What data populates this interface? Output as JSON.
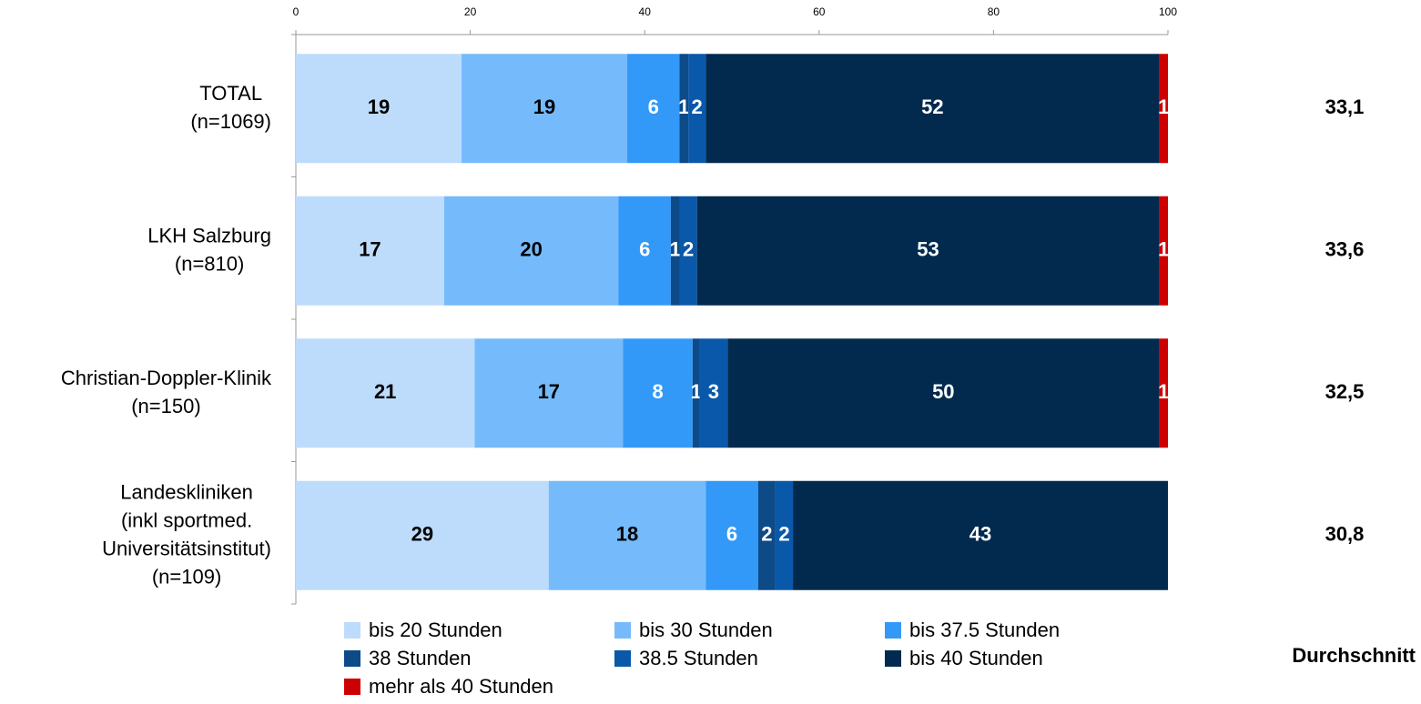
{
  "chart_data": {
    "type": "stacked-barh",
    "categories": [
      "TOTAL\n(n=1069)",
      "LKH Salzburg\n(n=810)",
      "Christian-Doppler-Klinik\n(n=150)",
      "Landeskliniken\n(inkl sportmed.\nUniversitätsinstitut)\n(n=109)"
    ],
    "series": [
      {
        "name": "bis 20 Stunden",
        "color": "#bddcfc",
        "label_color": "#000000",
        "values": [
          19,
          17,
          20.5,
          29
        ],
        "value_labels": [
          "19",
          "17",
          "21",
          "29"
        ]
      },
      {
        "name": "bis 30 Stunden",
        "color": "#75bafb",
        "label_color": "#000000",
        "values": [
          19,
          20,
          17,
          18
        ],
        "value_labels": [
          "19",
          "20",
          "17",
          "18"
        ]
      },
      {
        "name": "bis 37.5 Stunden",
        "color": "#3399f8",
        "label_color": "#ffffff",
        "values": [
          6,
          6,
          8,
          6
        ],
        "value_labels": [
          "6",
          "6",
          "8",
          "6"
        ]
      },
      {
        "name": "38 Stunden",
        "color": "#0c4a88",
        "label_color": "#ffffff",
        "values": [
          1,
          1,
          0.8,
          2
        ],
        "value_labels": [
          "1",
          "1",
          "1",
          "2"
        ]
      },
      {
        "name": "38.5 Stunden",
        "color": "#0a58a9",
        "label_color": "#ffffff",
        "values": [
          2,
          2,
          3.2,
          2
        ],
        "value_labels": [
          "2",
          "2",
          "3",
          "2"
        ]
      },
      {
        "name": "bis 40 Stunden",
        "color": "#022a4f",
        "label_color": "#ffffff",
        "values": [
          52,
          53,
          49.5,
          43
        ],
        "value_labels": [
          "52",
          "53",
          "50",
          "43"
        ]
      },
      {
        "name": "mehr als 40 Stunden",
        "color": "#cc0000",
        "label_color": "#ffffff",
        "values": [
          1,
          1,
          1,
          0
        ],
        "value_labels": [
          "1",
          "1",
          "1",
          null
        ]
      }
    ],
    "xlim": [
      0,
      100
    ],
    "xticks": [
      0,
      20,
      40,
      60,
      80,
      100
    ],
    "averages": {
      "title": "Durchschnitt",
      "values": [
        33.1,
        33.6,
        32.5,
        30.8
      ],
      "value_labels": [
        "33,1",
        "33,6",
        "32,5",
        "30,8"
      ]
    }
  }
}
